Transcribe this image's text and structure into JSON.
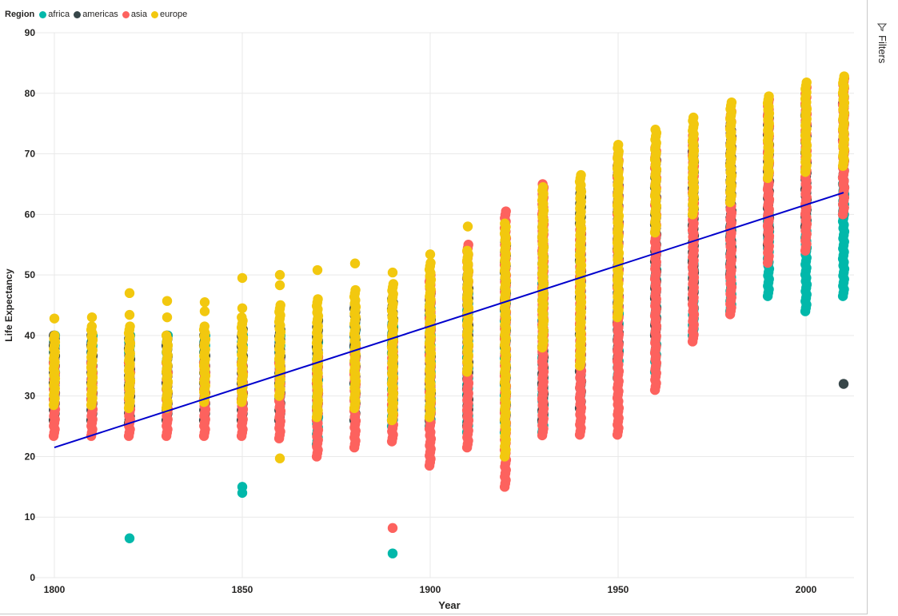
{
  "legend": {
    "title": "Region",
    "items": [
      {
        "label": "africa",
        "color": "#01B8AA"
      },
      {
        "label": "americas",
        "color": "#374649"
      },
      {
        "label": "asia",
        "color": "#FD625E"
      },
      {
        "label": "europe",
        "color": "#F2C80F"
      }
    ]
  },
  "filters_pane": {
    "label": "Filters",
    "icon": "filter-icon"
  },
  "chart_data": {
    "type": "scatter",
    "xlabel": "Year",
    "ylabel": "Life Expectancy",
    "xlim": [
      1800,
      2013
    ],
    "ylim": [
      0,
      90
    ],
    "xticks": [
      1800,
      1850,
      1900,
      1950,
      2000
    ],
    "yticks": [
      0,
      10,
      20,
      30,
      40,
      50,
      60,
      70,
      80,
      90
    ],
    "grid": true,
    "legend_position": "top-left",
    "trend_line": {
      "color": "#0000CC",
      "start": {
        "x": 1800,
        "y": 21.5
      },
      "end": {
        "x": 2010,
        "y": 63.6
      }
    },
    "columns": [
      {
        "x": 1800,
        "africa": [
          29.5,
          40.0
        ],
        "americas": [
          26.0,
          40.0
        ],
        "asia": [
          23.4,
          36.0
        ],
        "europe": [
          28.5,
          40.0
        ],
        "outliers": [
          {
            "y": 42.8,
            "region": "europe"
          }
        ]
      },
      {
        "x": 1810,
        "africa": [
          29.5,
          40.0
        ],
        "americas": [
          26.0,
          40.0
        ],
        "asia": [
          23.4,
          36.0
        ],
        "europe": [
          28.5,
          41.5
        ],
        "outliers": [
          {
            "y": 43.0,
            "region": "europe"
          }
        ]
      },
      {
        "x": 1820,
        "africa": [
          29.5,
          40.0
        ],
        "americas": [
          25.5,
          40.0
        ],
        "asia": [
          23.4,
          35.5
        ],
        "europe": [
          28.0,
          41.5
        ],
        "outliers": [
          {
            "y": 47.0,
            "region": "europe"
          },
          {
            "y": 43.4,
            "region": "europe"
          },
          {
            "y": 6.5,
            "region": "africa"
          }
        ]
      },
      {
        "x": 1830,
        "africa": [
          29.5,
          40.0
        ],
        "americas": [
          26.0,
          40.0
        ],
        "asia": [
          23.4,
          35.5
        ],
        "europe": [
          28.0,
          40.0
        ],
        "outliers": [
          {
            "y": 45.7,
            "region": "europe"
          },
          {
            "y": 43.0,
            "region": "europe"
          }
        ]
      },
      {
        "x": 1840,
        "africa": [
          29.5,
          40.0
        ],
        "americas": [
          26.0,
          40.0
        ],
        "asia": [
          23.4,
          35.5
        ],
        "europe": [
          29.0,
          41.5
        ],
        "outliers": [
          {
            "y": 45.5,
            "region": "europe"
          },
          {
            "y": 44.0,
            "region": "europe"
          }
        ]
      },
      {
        "x": 1850,
        "africa": [
          29.5,
          40.0
        ],
        "americas": [
          26.0,
          41.0
        ],
        "asia": [
          23.4,
          35.5
        ],
        "europe": [
          29.0,
          43.0
        ],
        "outliers": [
          {
            "y": 49.5,
            "region": "europe"
          },
          {
            "y": 44.5,
            "region": "europe"
          },
          {
            "y": 15.0,
            "region": "africa"
          },
          {
            "y": 14.0,
            "region": "africa"
          }
        ]
      },
      {
        "x": 1860,
        "africa": [
          29.5,
          40.0
        ],
        "americas": [
          26.0,
          41.5
        ],
        "asia": [
          23.0,
          36.0
        ],
        "europe": [
          30.0,
          45.0
        ],
        "outliers": [
          {
            "y": 50.0,
            "region": "europe"
          },
          {
            "y": 48.3,
            "region": "europe"
          },
          {
            "y": 19.7,
            "region": "europe"
          }
        ]
      },
      {
        "x": 1870,
        "africa": [
          22.0,
          40.0
        ],
        "americas": [
          26.0,
          42.5
        ],
        "asia": [
          20.0,
          36.5
        ],
        "europe": [
          26.5,
          46.0
        ],
        "outliers": [
          {
            "y": 50.8,
            "region": "europe"
          }
        ]
      },
      {
        "x": 1880,
        "africa": [
          26.0,
          42.0
        ],
        "americas": [
          26.0,
          45.0
        ],
        "asia": [
          21.5,
          38.0
        ],
        "europe": [
          28.0,
          47.5
        ],
        "outliers": [
          {
            "y": 51.9,
            "region": "europe"
          }
        ]
      },
      {
        "x": 1890,
        "africa": [
          25.0,
          42.0
        ],
        "americas": [
          26.0,
          46.0
        ],
        "asia": [
          22.5,
          39.0
        ],
        "europe": [
          26.0,
          48.5
        ],
        "outliers": [
          {
            "y": 50.4,
            "region": "europe"
          },
          {
            "y": 8.2,
            "region": "asia"
          },
          {
            "y": 4.0,
            "region": "africa"
          }
        ]
      },
      {
        "x": 1900,
        "africa": [
          25.0,
          45.0
        ],
        "americas": [
          26.0,
          47.0
        ],
        "asia": [
          18.5,
          50.0
        ],
        "europe": [
          26.5,
          52.0
        ],
        "outliers": [
          {
            "y": 53.4,
            "region": "europe"
          }
        ]
      },
      {
        "x": 1910,
        "africa": [
          24.0,
          47.0
        ],
        "americas": [
          25.0,
          50.0
        ],
        "asia": [
          21.5,
          55.0
        ],
        "europe": [
          34.0,
          54.0
        ],
        "outliers": [
          {
            "y": 58.0,
            "region": "europe"
          }
        ]
      },
      {
        "x": 1920,
        "africa": [
          24.0,
          48.0
        ],
        "americas": [
          26.0,
          56.0
        ],
        "asia": [
          15.0,
          60.5
        ],
        "europe": [
          20.0,
          58.5
        ],
        "outliers": []
      },
      {
        "x": 1930,
        "africa": [
          24.0,
          53.0
        ],
        "americas": [
          26.0,
          59.0
        ],
        "asia": [
          23.5,
          65.0
        ],
        "europe": [
          38.0,
          64.5
        ],
        "outliers": []
      },
      {
        "x": 1940,
        "africa": [
          28.0,
          55.0
        ],
        "americas": [
          28.0,
          64.0
        ],
        "asia": [
          23.6,
          58.0
        ],
        "europe": [
          35.0,
          66.5
        ],
        "outliers": []
      },
      {
        "x": 1950,
        "africa": [
          33.0,
          47.0
        ],
        "americas": [
          36.0,
          68.0
        ],
        "asia": [
          23.6,
          70.0
        ],
        "europe": [
          43.0,
          71.5
        ],
        "outliers": []
      },
      {
        "x": 1960,
        "africa": [
          34.0,
          52.0
        ],
        "americas": [
          40.0,
          70.0
        ],
        "asia": [
          31.0,
          71.0
        ],
        "europe": [
          57.0,
          74.0
        ],
        "outliers": []
      },
      {
        "x": 1970,
        "africa": [
          40.0,
          53.0
        ],
        "americas": [
          46.0,
          72.0
        ],
        "asia": [
          39.0,
          73.0
        ],
        "europe": [
          60.0,
          76.0
        ],
        "outliers": []
      },
      {
        "x": 1980,
        "africa": [
          44.0,
          58.0
        ],
        "americas": [
          50.0,
          75.0
        ],
        "asia": [
          43.5,
          77.0
        ],
        "europe": [
          62.0,
          78.5
        ],
        "outliers": []
      },
      {
        "x": 1990,
        "africa": [
          46.5,
          60.0
        ],
        "americas": [
          55.0,
          77.0
        ],
        "asia": [
          52.0,
          79.0
        ],
        "europe": [
          66.0,
          79.5
        ],
        "outliers": []
      },
      {
        "x": 2000,
        "africa": [
          44.0,
          60.0
        ],
        "americas": [
          58.0,
          78.0
        ],
        "asia": [
          54.0,
          81.0
        ],
        "europe": [
          67.0,
          81.8
        ],
        "outliers": []
      },
      {
        "x": 2010,
        "africa": [
          46.5,
          65.0
        ],
        "americas": [
          60.0,
          80.0
        ],
        "asia": [
          60.0,
          82.5
        ],
        "europe": [
          68.0,
          82.8
        ],
        "outliers": [
          {
            "y": 32.0,
            "region": "americas"
          }
        ]
      }
    ]
  }
}
